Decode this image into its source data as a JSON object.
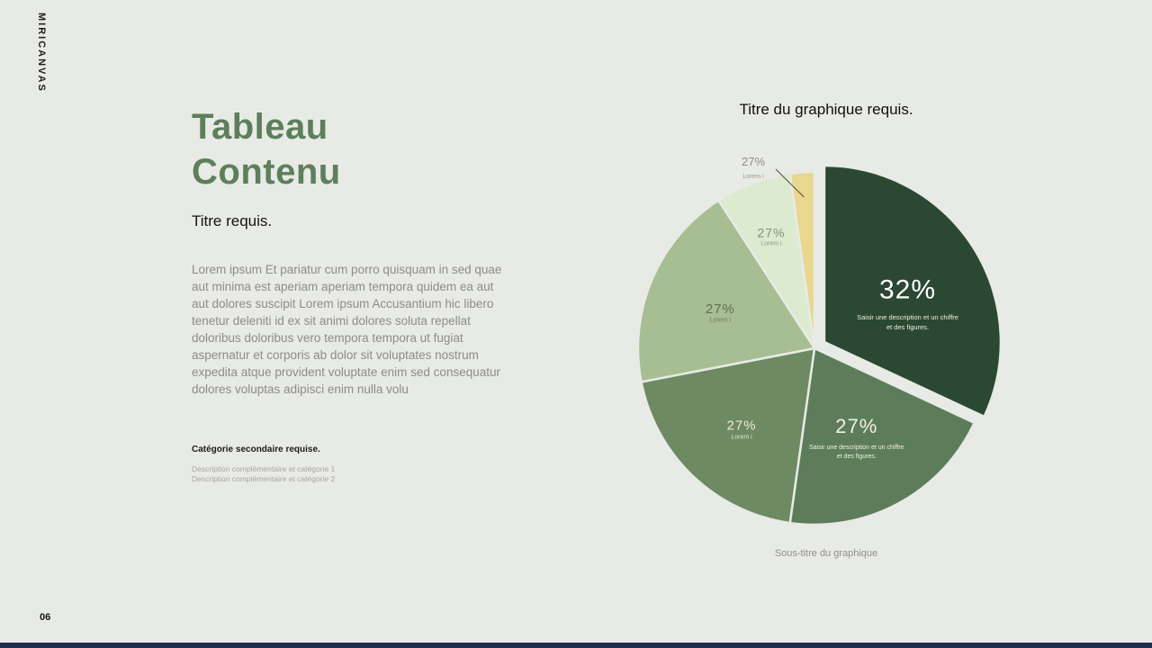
{
  "page": {
    "brand": "MIRICANVAS",
    "page_number": "06",
    "background_color": "#e8eae5",
    "footer_bar_color": "#1f2e4d"
  },
  "content": {
    "title_line1": "Tableau",
    "title_line2": "Contenu",
    "title_color": "#5d7f5c",
    "subtitle": "Titre requis.",
    "body": "Lorem ipsum Et pariatur cum porro quisquam in sed quae aut minima est aperiam aperiam tempora quidem ea aut aut dolores suscipit Lorem ipsum Accusantium hic libero tenetur deleniti id ex sit animi dolores soluta repellat doloribus doloribus vero tempora tempora ut fugiat aspernatur et corporis ab dolor sit voluptates nostrum expedita atque provident voluptate enim sed consequatur dolores voluptas adipisci enim nulla volu",
    "secondary_category": "Catégorie secondaire requise.",
    "descriptions": [
      "Description complémentaire et catégorie 1",
      "Description complémentaire et catégorie 2"
    ]
  },
  "chart_data": {
    "type": "pie",
    "title": "Titre du graphique requis.",
    "subtitle": "Sous-titre du graphique",
    "legend_position": "none",
    "slices": [
      {
        "label": "32%",
        "value": 32,
        "sweep_deg": 115,
        "color": "#2a4832",
        "exploded": true,
        "label_color": "#ffffff",
        "description_lines": [
          "Saisir une description et un chiffre",
          "et des figures."
        ],
        "description_color": "#f3f1e3"
      },
      {
        "label": "27%",
        "value": 27,
        "sweep_deg": 73,
        "color": "#5d7d5a",
        "exploded": false,
        "label_color": "#f3f1e3",
        "description_lines": [
          "Saisir une description et un chiffre",
          "et des figures."
        ],
        "description_color": "#f3f1e3"
      },
      {
        "label": "27%",
        "value": 27,
        "sweep_deg": 71,
        "color": "#6d8a62",
        "exploded": false,
        "label_color": "#efeadb",
        "description_lines": [
          "Lorem i"
        ],
        "description_color": "#e7e4d4"
      },
      {
        "label": "27%",
        "value": 27,
        "sweep_deg": 68,
        "color": "#a7bd92",
        "exploded": false,
        "label_color": "#5f6f57",
        "description_lines": [
          "Lorem i"
        ],
        "description_color": "#6d7c64"
      },
      {
        "label": "27%",
        "value": 27,
        "sweep_deg": 25,
        "color": "#dcebd0",
        "exploded": false,
        "label_color": "#7d917a",
        "description_lines": [
          "Lorem i"
        ],
        "description_color": "#8a9c86"
      },
      {
        "label": "27%",
        "value": 27,
        "sweep_deg": 8,
        "color": "#e8d78c",
        "exploded": false,
        "label_color": "#8d8d85",
        "description_lines": [
          "Lorem i"
        ],
        "description_color": "#9a9a92",
        "callout": true
      }
    ]
  }
}
